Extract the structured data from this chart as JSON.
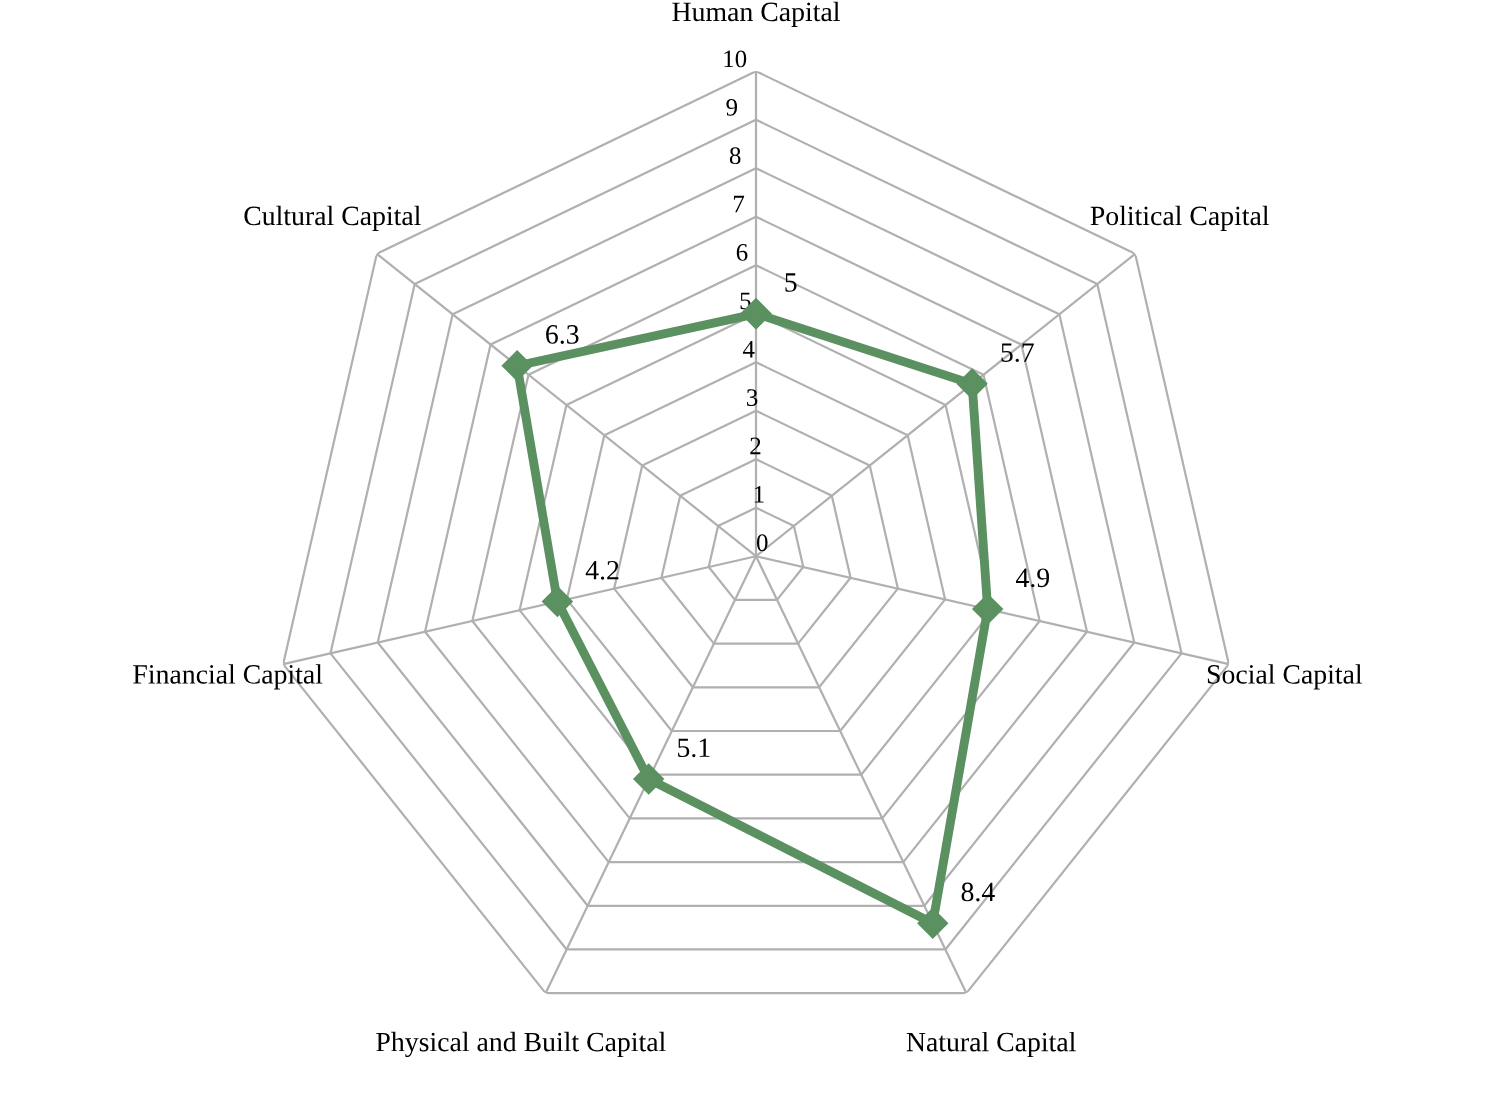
{
  "chart_data": {
    "type": "radar",
    "categories": [
      "Human Capital",
      "Political Capital",
      "Social Capital",
      "Natural Capital",
      "Physical and Built Capital",
      "Financial Capital",
      "Cultural Capital"
    ],
    "series": [
      {
        "color": "#5b9160",
        "values": [
          5,
          5.7,
          4.9,
          8.4,
          5.1,
          4.2,
          6.3
        ]
      }
    ],
    "ylim": [
      0,
      10
    ],
    "yticks": [
      0,
      1,
      2,
      3,
      4,
      5,
      6,
      7,
      8,
      9,
      10
    ],
    "grid": true,
    "marker": "diamond",
    "line_style": "solid",
    "data_labels": true
  }
}
